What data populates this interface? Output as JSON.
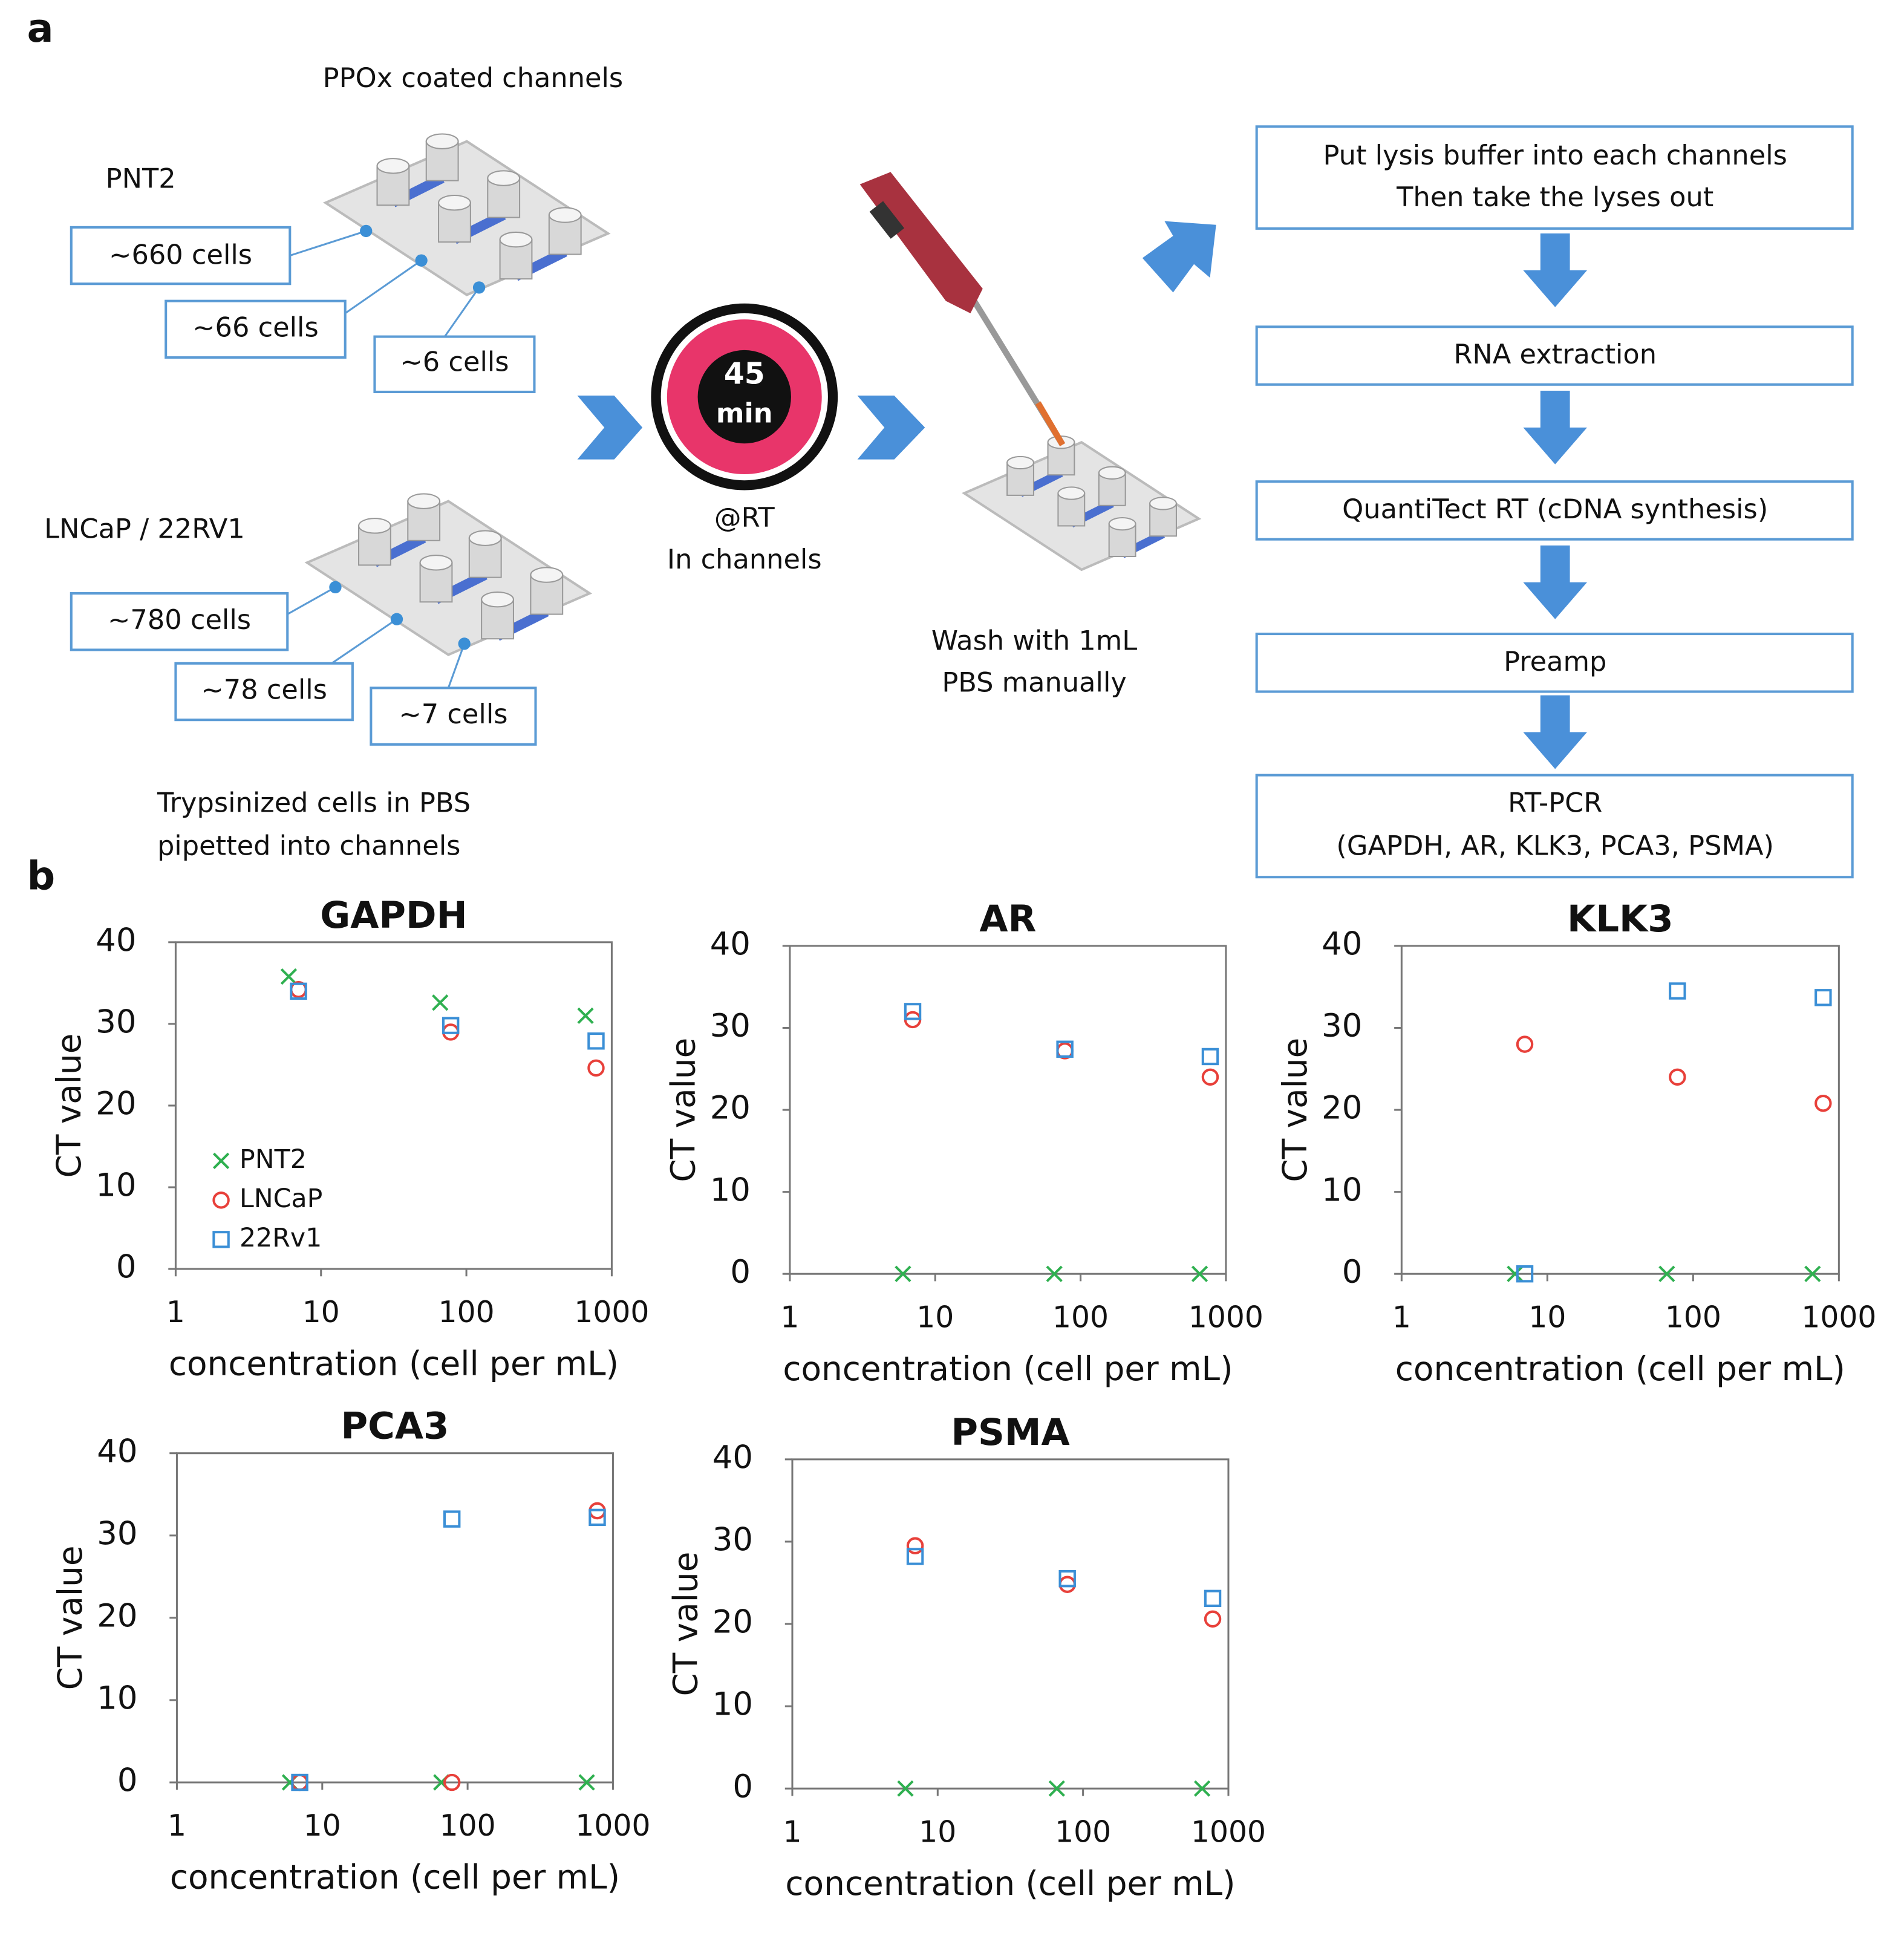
{
  "panel_labels": [
    "a",
    "b"
  ],
  "diagram": {
    "coating": "PPOx coated channels",
    "groups": [
      {
        "cell_line": "PNT2",
        "counts": [
          "~660 cells",
          "~66 cells",
          "~6 cells"
        ]
      },
      {
        "cell_line": "LNCaP / 22RV1",
        "counts": [
          "~780 cells",
          "~78 cells",
          "~7 cells"
        ]
      }
    ],
    "loading_note": [
      "Trypsinized cells in PBS",
      "pipetted into channels"
    ],
    "timer": {
      "value": "45",
      "unit": "min"
    },
    "incubation": [
      "@RT",
      "In channels"
    ],
    "wash": [
      "Wash with 1mL",
      "PBS manually"
    ],
    "steps": [
      [
        "Put lysis buffer into each channels",
        "Then take the lyses out"
      ],
      [
        "RNA extraction"
      ],
      [
        "QuantiTect RT (cDNA synthesis)"
      ],
      [
        "Preamp"
      ],
      [
        "RT-PCR",
        "(GAPDH, AR, KLK3, PCA3, PSMA)"
      ]
    ]
  },
  "chart_data": [
    {
      "type": "scatter",
      "title": "GAPDH",
      "x_label": "concentration (cell per mL)",
      "y_label": "CT value",
      "log_x": true,
      "grid": false,
      "legend": "lower left",
      "xlim": [
        1,
        1000
      ],
      "xticks": [
        1,
        10,
        100,
        1000
      ],
      "ylim": [
        0,
        40
      ],
      "yticks": [
        0,
        10,
        20,
        30,
        40
      ],
      "series": [
        {
          "name": "PNT2",
          "color": "#2fb050",
          "marker": "x",
          "x": [
            6,
            66,
            660
          ],
          "values": [
            35.8,
            32.6,
            31
          ]
        },
        {
          "name": "LNCaP",
          "color": "#e8403a",
          "marker": "o",
          "x": [
            7,
            78,
            780
          ],
          "values": [
            34.2,
            29,
            24.6
          ]
        },
        {
          "name": "22Rv1",
          "color": "#3b8fd6",
          "marker": "s",
          "x": [
            7,
            78,
            780
          ],
          "values": [
            34,
            29.8,
            27.9
          ]
        }
      ]
    },
    {
      "type": "scatter",
      "title": "AR",
      "x_label": "concentration (cell per mL)",
      "y_label": "CT value",
      "log_x": true,
      "grid": false,
      "xlim": [
        1,
        1000
      ],
      "xticks": [
        1,
        10,
        100,
        1000
      ],
      "ylim": [
        0,
        40
      ],
      "yticks": [
        0,
        10,
        20,
        30,
        40
      ],
      "series": [
        {
          "color": "#2fb050",
          "marker": "x",
          "x": [
            6,
            66,
            660
          ],
          "values": [
            0,
            0,
            0
          ]
        },
        {
          "color": "#e8403a",
          "marker": "o",
          "x": [
            7,
            78,
            780
          ],
          "values": [
            31,
            27.2,
            24
          ]
        },
        {
          "color": "#3b8fd6",
          "marker": "s",
          "x": [
            7,
            78,
            780
          ],
          "values": [
            32,
            27.4,
            26.5
          ]
        }
      ]
    },
    {
      "type": "scatter",
      "title": "KLK3",
      "x_label": "concentration (cell per mL)",
      "y_label": "CT value",
      "log_x": true,
      "grid": false,
      "xlim": [
        1,
        1000
      ],
      "xticks": [
        1,
        10,
        100,
        1000
      ],
      "ylim": [
        0,
        40
      ],
      "yticks": [
        0,
        10,
        20,
        30,
        40
      ],
      "series": [
        {
          "color": "#2fb050",
          "marker": "x",
          "x": [
            6,
            66,
            660
          ],
          "values": [
            0,
            0,
            0
          ]
        },
        {
          "color": "#e8403a",
          "marker": "o",
          "x": [
            7,
            78,
            780
          ],
          "values": [
            28,
            24,
            20.8
          ]
        },
        {
          "color": "#3b8fd6",
          "marker": "s",
          "x": [
            7,
            78,
            780
          ],
          "values": [
            0,
            34.5,
            33.7
          ]
        }
      ]
    },
    {
      "type": "scatter",
      "title": "PCA3",
      "x_label": "concentration (cell per mL)",
      "y_label": "CT value",
      "log_x": true,
      "grid": false,
      "xlim": [
        1,
        1000
      ],
      "xticks": [
        1,
        10,
        100,
        1000
      ],
      "ylim": [
        0,
        40
      ],
      "yticks": [
        0,
        10,
        20,
        30,
        40
      ],
      "series": [
        {
          "color": "#2fb050",
          "marker": "x",
          "x": [
            6,
            66,
            660
          ],
          "values": [
            0,
            0,
            0
          ]
        },
        {
          "color": "#e8403a",
          "marker": "o",
          "x": [
            7,
            78,
            780
          ],
          "values": [
            0,
            0,
            33
          ]
        },
        {
          "color": "#3b8fd6",
          "marker": "s",
          "x": [
            7,
            78,
            780
          ],
          "values": [
            0,
            32,
            32.2
          ]
        }
      ]
    },
    {
      "type": "scatter",
      "title": "PSMA",
      "x_label": "concentration (cell per mL)",
      "y_label": "CT value",
      "log_x": true,
      "grid": false,
      "xlim": [
        1,
        1000
      ],
      "xticks": [
        1,
        10,
        100,
        1000
      ],
      "ylim": [
        0,
        40
      ],
      "yticks": [
        0,
        10,
        20,
        30,
        40
      ],
      "series": [
        {
          "color": "#2fb050",
          "marker": "x",
          "x": [
            6,
            66,
            660
          ],
          "values": [
            0,
            0,
            0
          ]
        },
        {
          "color": "#e8403a",
          "marker": "o",
          "x": [
            7,
            78,
            780
          ],
          "values": [
            29.5,
            24.8,
            20.6
          ]
        },
        {
          "color": "#3b8fd6",
          "marker": "s",
          "x": [
            7,
            78,
            780
          ],
          "values": [
            28.2,
            25.5,
            23.1
          ]
        }
      ]
    }
  ]
}
